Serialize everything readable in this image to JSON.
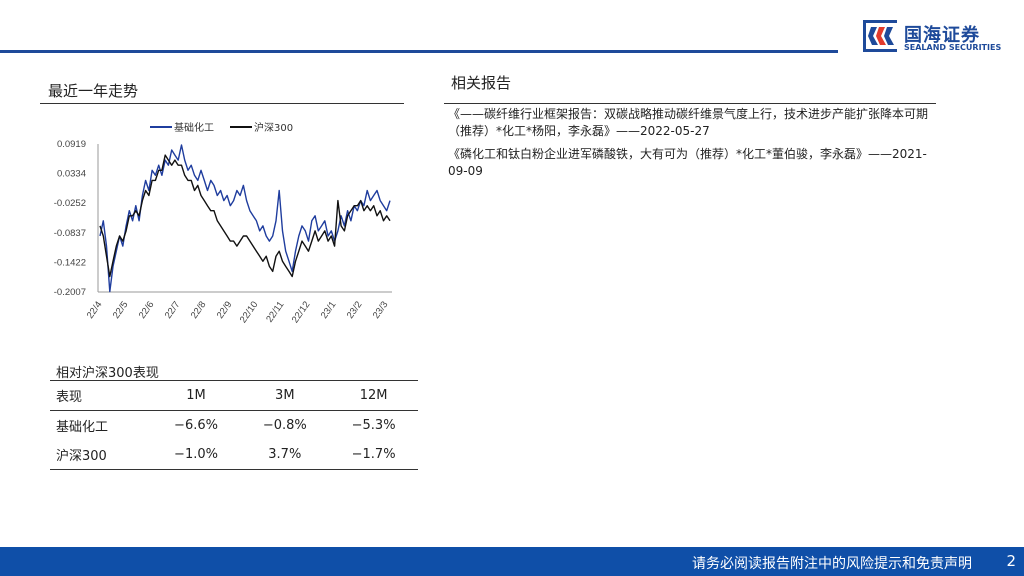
{
  "brand": {
    "name_cn": "国海证券",
    "name_en": "SEALAND SECURITIES",
    "color": "#1e4a9a"
  },
  "left": {
    "section_title": "最近一年走势",
    "chart_data": {
      "type": "line",
      "series": [
        {
          "name": "基础化工",
          "color": "#1f3d9e",
          "values": [
            -0.09,
            -0.06,
            -0.11,
            -0.2,
            -0.15,
            -0.12,
            -0.09,
            -0.11,
            -0.07,
            -0.04,
            -0.06,
            -0.03,
            -0.06,
            -0.01,
            0.02,
            0.0,
            0.04,
            0.03,
            0.05,
            0.03,
            0.06,
            0.05,
            0.08,
            0.07,
            0.06,
            0.09,
            0.06,
            0.04,
            0.05,
            0.03,
            0.02,
            0.04,
            0.02,
            0.0,
            0.02,
            0.01,
            -0.01,
            0.0,
            -0.02,
            -0.01,
            -0.03,
            -0.02,
            0.0,
            -0.01,
            0.01,
            -0.02,
            -0.04,
            -0.05,
            -0.06,
            -0.08,
            -0.07,
            -0.09,
            -0.1,
            -0.09,
            -0.06,
            0.0,
            -0.08,
            -0.12,
            -0.14,
            -0.16,
            -0.12,
            -0.09,
            -0.07,
            -0.08,
            -0.1,
            -0.06,
            -0.05,
            -0.08,
            -0.07,
            -0.06,
            -0.09,
            -0.08,
            -0.1,
            -0.08,
            -0.05,
            -0.07,
            -0.04,
            -0.06,
            -0.03,
            -0.04,
            -0.02,
            -0.03,
            0.0,
            -0.02,
            -0.01,
            0.0,
            -0.02,
            -0.03,
            -0.04,
            -0.02
          ]
        },
        {
          "name": "沪深300",
          "color": "#111111",
          "values": [
            -0.07,
            -0.09,
            -0.13,
            -0.17,
            -0.14,
            -0.11,
            -0.09,
            -0.1,
            -0.08,
            -0.05,
            -0.05,
            -0.04,
            -0.05,
            -0.02,
            0.0,
            -0.01,
            0.02,
            0.02,
            0.04,
            0.04,
            0.07,
            0.06,
            0.05,
            0.06,
            0.05,
            0.05,
            0.03,
            0.02,
            0.02,
            0.0,
            0.01,
            -0.01,
            -0.02,
            -0.03,
            -0.04,
            -0.04,
            -0.06,
            -0.07,
            -0.08,
            -0.09,
            -0.1,
            -0.1,
            -0.11,
            -0.1,
            -0.09,
            -0.09,
            -0.1,
            -0.11,
            -0.12,
            -0.13,
            -0.14,
            -0.13,
            -0.15,
            -0.16,
            -0.13,
            -0.12,
            -0.14,
            -0.15,
            -0.16,
            -0.17,
            -0.14,
            -0.12,
            -0.1,
            -0.11,
            -0.12,
            -0.1,
            -0.08,
            -0.1,
            -0.09,
            -0.08,
            -0.1,
            -0.09,
            -0.11,
            -0.02,
            -0.07,
            -0.08,
            -0.05,
            -0.04,
            -0.03,
            -0.03,
            -0.02,
            -0.04,
            -0.03,
            -0.04,
            -0.03,
            -0.05,
            -0.04,
            -0.06,
            -0.05,
            -0.06
          ]
        }
      ],
      "y_ticks": [
        "0.0919",
        "0.0334",
        "-0.0252",
        "-0.0837",
        "-0.1422",
        "-0.2007"
      ],
      "ylim": [
        -0.2007,
        0.0919
      ],
      "x_ticks": [
        "22/4",
        "22/5",
        "22/6",
        "22/7",
        "22/8",
        "22/9",
        "22/10",
        "22/11",
        "22/12",
        "23/1",
        "23/2",
        "23/3"
      ],
      "legend_position": "top"
    }
  },
  "relative": {
    "title": "相对沪深300表现",
    "headers": [
      "表现",
      "1M",
      "3M",
      "12M"
    ],
    "rows": [
      [
        "基础化工",
        "−6.6%",
        "−0.8%",
        "−5.3%"
      ],
      [
        "沪深300",
        "−1.0%",
        "3.7%",
        "−1.7%"
      ]
    ]
  },
  "right": {
    "section_title": "相关报告",
    "reports": [
      "《——碳纤维行业框架报告：双碳战略推动碳纤维景气度上行，技术进步产能扩张降本可期（推荐）*化工*杨阳，李永磊》——2022-05-27",
      "《磷化工和钛白粉企业进军磷酸铁，大有可为（推荐）*化工*董伯骏，李永磊》——2021-09-09"
    ]
  },
  "footer": {
    "disclaimer": "请务必阅读报告附注中的风险提示和免责声明",
    "page": "2",
    "color": "#0f4fa8"
  }
}
